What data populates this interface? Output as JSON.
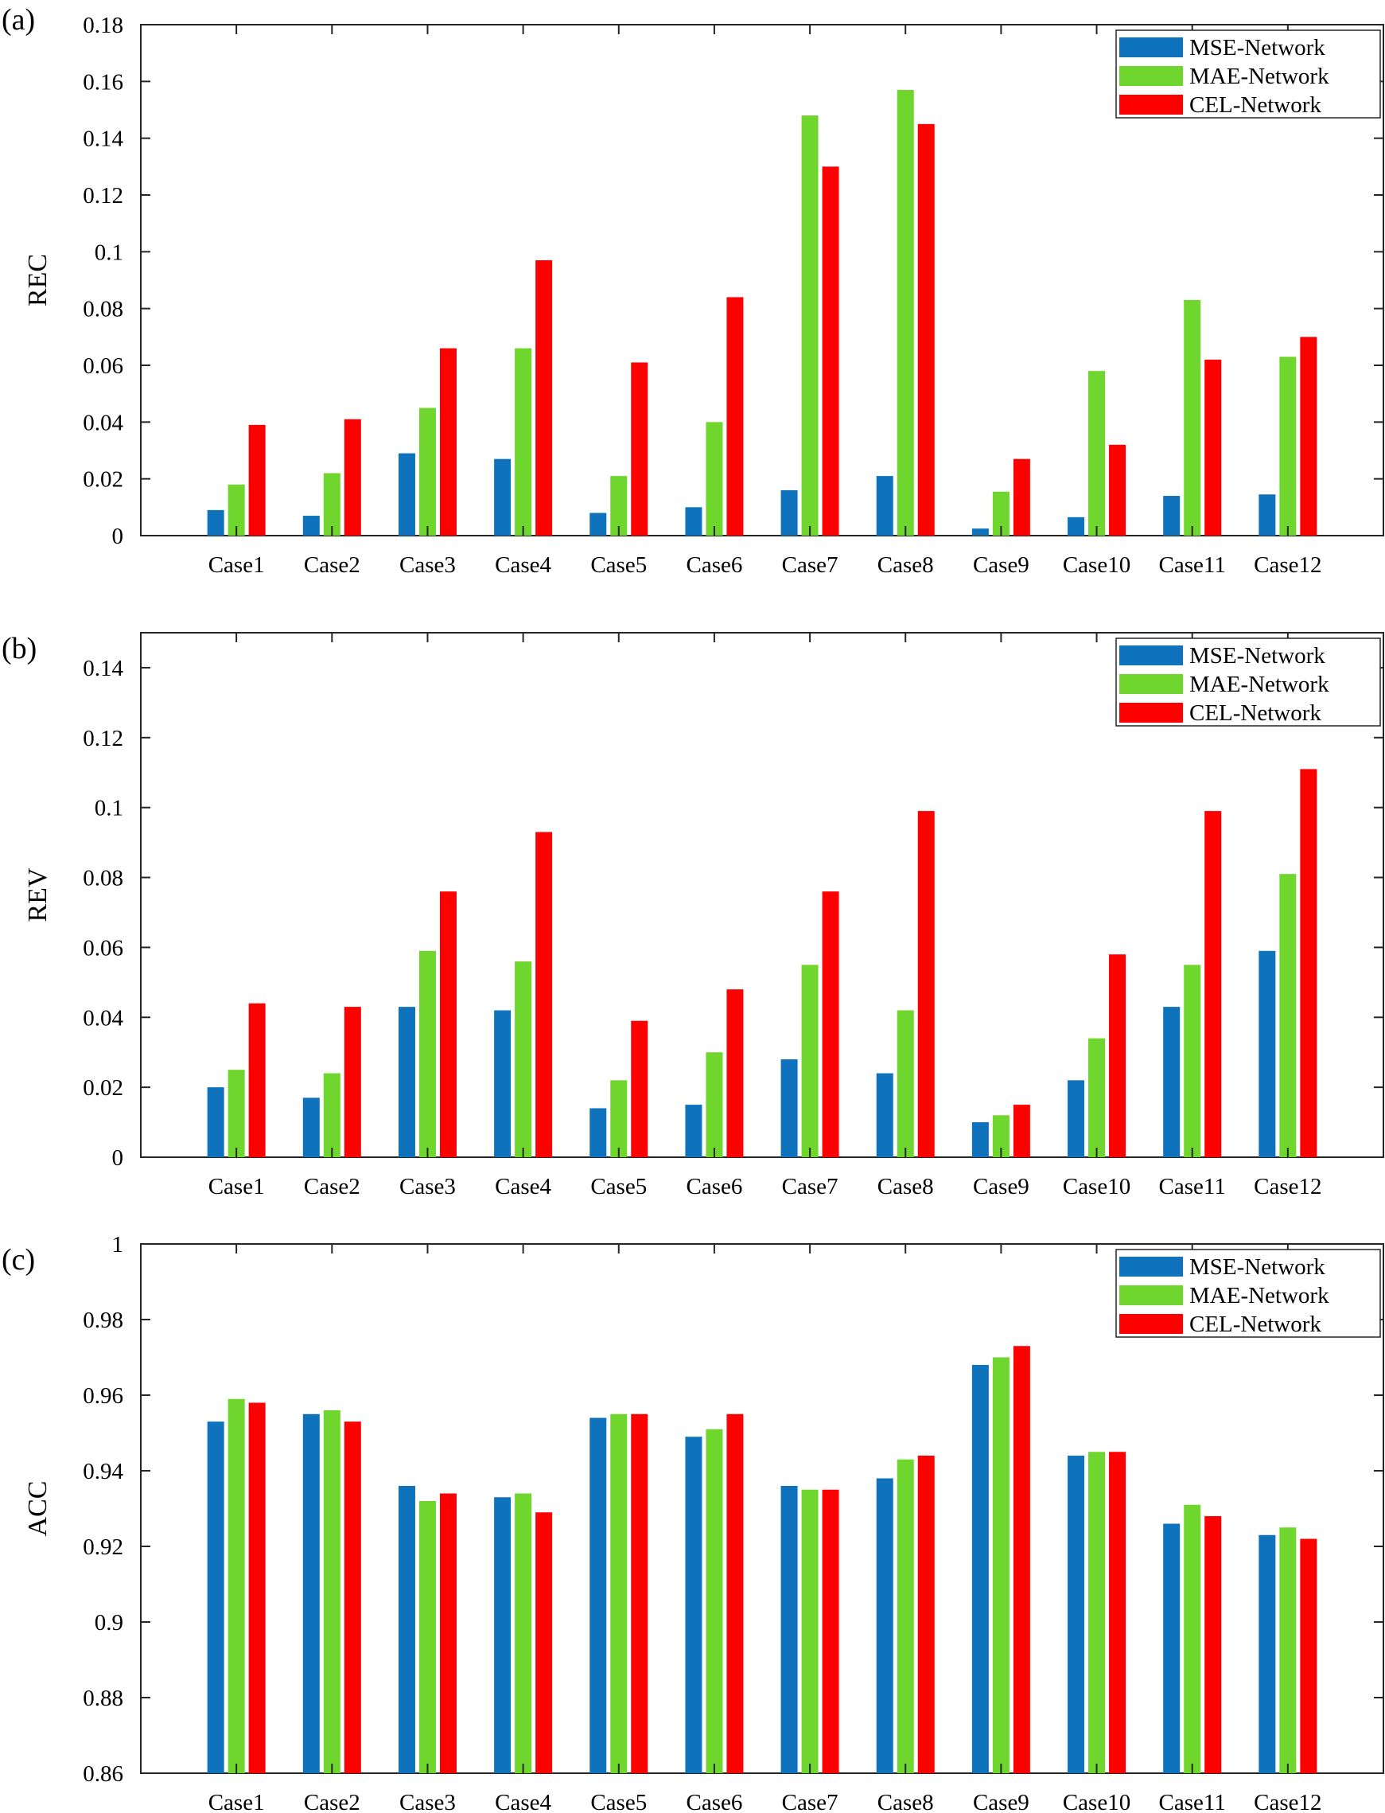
{
  "chart_data": [
    {
      "type": "bar",
      "panel_label": "(a)",
      "ylabel": "REC",
      "ylim": [
        0,
        0.18
      ],
      "yticks": [
        "0",
        "0.02",
        "0.04",
        "0.06",
        "0.08",
        "0.1",
        "0.12",
        "0.14",
        "0.16",
        "0.18"
      ],
      "categories": [
        "Case1",
        "Case2",
        "Case3",
        "Case4",
        "Case5",
        "Case6",
        "Case7",
        "Case8",
        "Case9",
        "Case10",
        "Case11",
        "Case12"
      ],
      "legend": [
        "MSE-Network",
        "MAE-Network",
        "CEL-Network"
      ],
      "legend_position": "top-right",
      "series": [
        {
          "name": "MSE-Network",
          "color": "#0e72bd",
          "values": [
            0.009,
            0.007,
            0.029,
            0.027,
            0.008,
            0.01,
            0.016,
            0.021,
            0.0025,
            0.0065,
            0.014,
            0.0145
          ]
        },
        {
          "name": "MAE-Network",
          "color": "#6ed62d",
          "values": [
            0.018,
            0.022,
            0.045,
            0.066,
            0.021,
            0.04,
            0.148,
            0.157,
            0.0155,
            0.058,
            0.083,
            0.063
          ]
        },
        {
          "name": "CEL-Network",
          "color": "#ff0000",
          "values": [
            0.039,
            0.041,
            0.066,
            0.097,
            0.061,
            0.084,
            0.13,
            0.145,
            0.027,
            0.032,
            0.062,
            0.07
          ]
        }
      ]
    },
    {
      "type": "bar",
      "panel_label": "(b)",
      "ylabel": "REV",
      "ylim": [
        0,
        0.15
      ],
      "yticks": [
        "0",
        "0.02",
        "0.04",
        "0.06",
        "0.08",
        "0.1",
        "0.12",
        "0.14"
      ],
      "categories": [
        "Case1",
        "Case2",
        "Case3",
        "Case4",
        "Case5",
        "Case6",
        "Case7",
        "Case8",
        "Case9",
        "Case10",
        "Case11",
        "Case12"
      ],
      "legend": [
        "MSE-Network",
        "MAE-Network",
        "CEL-Network"
      ],
      "legend_position": "top-right",
      "series": [
        {
          "name": "MSE-Network",
          "color": "#0e72bd",
          "values": [
            0.02,
            0.017,
            0.043,
            0.042,
            0.014,
            0.015,
            0.028,
            0.024,
            0.01,
            0.022,
            0.043,
            0.059
          ]
        },
        {
          "name": "MAE-Network",
          "color": "#6ed62d",
          "values": [
            0.025,
            0.024,
            0.059,
            0.056,
            0.022,
            0.03,
            0.055,
            0.042,
            0.012,
            0.034,
            0.055,
            0.081
          ]
        },
        {
          "name": "CEL-Network",
          "color": "#ff0000",
          "values": [
            0.044,
            0.043,
            0.076,
            0.093,
            0.039,
            0.048,
            0.076,
            0.099,
            0.015,
            0.058,
            0.099,
            0.111
          ]
        }
      ]
    },
    {
      "type": "bar",
      "panel_label": "(c)",
      "ylabel": "ACC",
      "ylim": [
        0.86,
        1.0
      ],
      "yticks": [
        "0.86",
        "0.88",
        "0.9",
        "0.92",
        "0.94",
        "0.96",
        "0.98",
        "1"
      ],
      "categories": [
        "Case1",
        "Case2",
        "Case3",
        "Case4",
        "Case5",
        "Case6",
        "Case7",
        "Case8",
        "Case9",
        "Case10",
        "Case11",
        "Case12"
      ],
      "legend": [
        "MSE-Network",
        "MAE-Network",
        "CEL-Network"
      ],
      "legend_position": "top-right",
      "series": [
        {
          "name": "MSE-Network",
          "color": "#0e72bd",
          "values": [
            0.953,
            0.955,
            0.936,
            0.933,
            0.954,
            0.949,
            0.936,
            0.938,
            0.968,
            0.944,
            0.926,
            0.923
          ]
        },
        {
          "name": "MAE-Network",
          "color": "#6ed62d",
          "values": [
            0.959,
            0.956,
            0.932,
            0.934,
            0.955,
            0.951,
            0.935,
            0.943,
            0.97,
            0.945,
            0.931,
            0.925
          ]
        },
        {
          "name": "CEL-Network",
          "color": "#ff0000",
          "values": [
            0.958,
            0.953,
            0.934,
            0.929,
            0.955,
            0.955,
            0.935,
            0.944,
            0.973,
            0.945,
            0.928,
            0.922
          ]
        }
      ]
    }
  ]
}
